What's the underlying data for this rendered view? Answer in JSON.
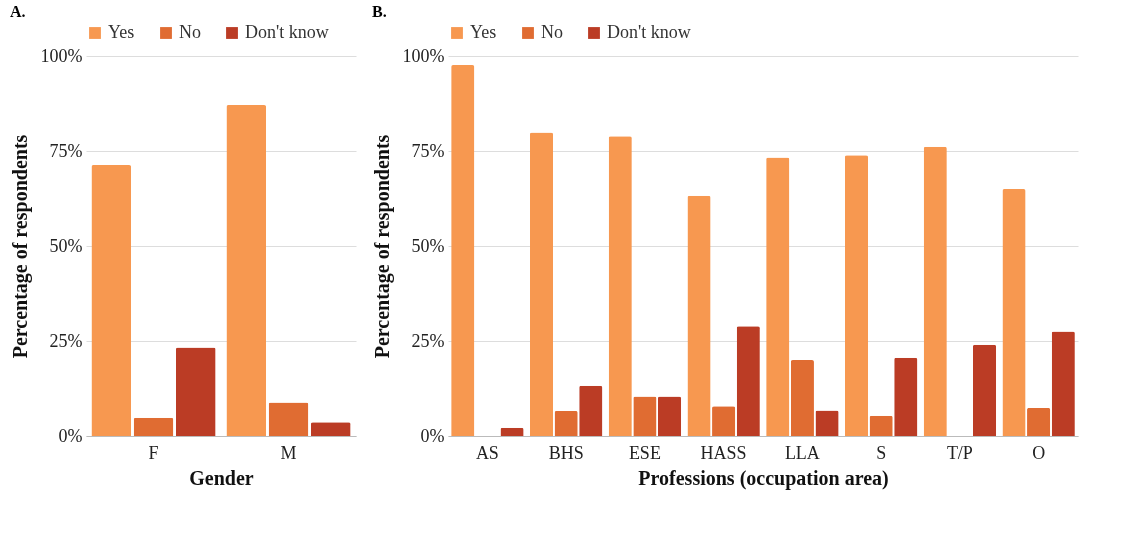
{
  "chart_data": [
    {
      "type": "bar",
      "title": "A.",
      "xlabel": "Gender",
      "ylabel": "Percentage of respondents",
      "categories": [
        "F",
        "M"
      ],
      "series": [
        {
          "name": "Yes",
          "color": "#f79850",
          "values": [
            71.3,
            87.1
          ]
        },
        {
          "name": "No",
          "color": "#e06c32",
          "values": [
            4.8,
            8.8
          ]
        },
        {
          "name": "Don't know",
          "color": "#bb3c25",
          "values": [
            23.3,
            3.6
          ]
        }
      ],
      "ylim": [
        0,
        100
      ],
      "yticks": [
        {
          "value": 0,
          "label": "0%"
        },
        {
          "value": 25,
          "label": "25%"
        },
        {
          "value": 50,
          "label": "50%"
        },
        {
          "value": 75,
          "label": "75%"
        },
        {
          "value": 100,
          "label": "100%"
        }
      ],
      "grid": "y",
      "legend": "top"
    },
    {
      "type": "bar",
      "title": "B.",
      "xlabel": "Professions (occupation area)",
      "ylabel": "Percentage of respondents",
      "categories": [
        "AS",
        "BHS",
        "ESE",
        "HASS",
        "LLA",
        "S",
        "T/P",
        "O"
      ],
      "series": [
        {
          "name": "Yes",
          "color": "#f79850",
          "values": [
            97.6,
            79.9,
            78.9,
            63.2,
            73.3,
            73.9,
            76.1,
            65.0
          ]
        },
        {
          "name": "No",
          "color": "#e06c32",
          "values": [
            0,
            6.6,
            10.4,
            7.8,
            20.0,
            5.3,
            0,
            7.4
          ]
        },
        {
          "name": "Don't know",
          "color": "#bb3c25",
          "values": [
            2.2,
            13.2,
            10.4,
            28.9,
            6.7,
            20.6,
            24.0,
            27.5
          ]
        }
      ],
      "ylim": [
        0,
        100
      ],
      "yticks": [
        {
          "value": 0,
          "label": "0%"
        },
        {
          "value": 25,
          "label": "25%"
        },
        {
          "value": 50,
          "label": "50%"
        },
        {
          "value": 75,
          "label": "75%"
        },
        {
          "value": 100,
          "label": "100%"
        }
      ],
      "grid": "y",
      "legend": "top"
    }
  ]
}
